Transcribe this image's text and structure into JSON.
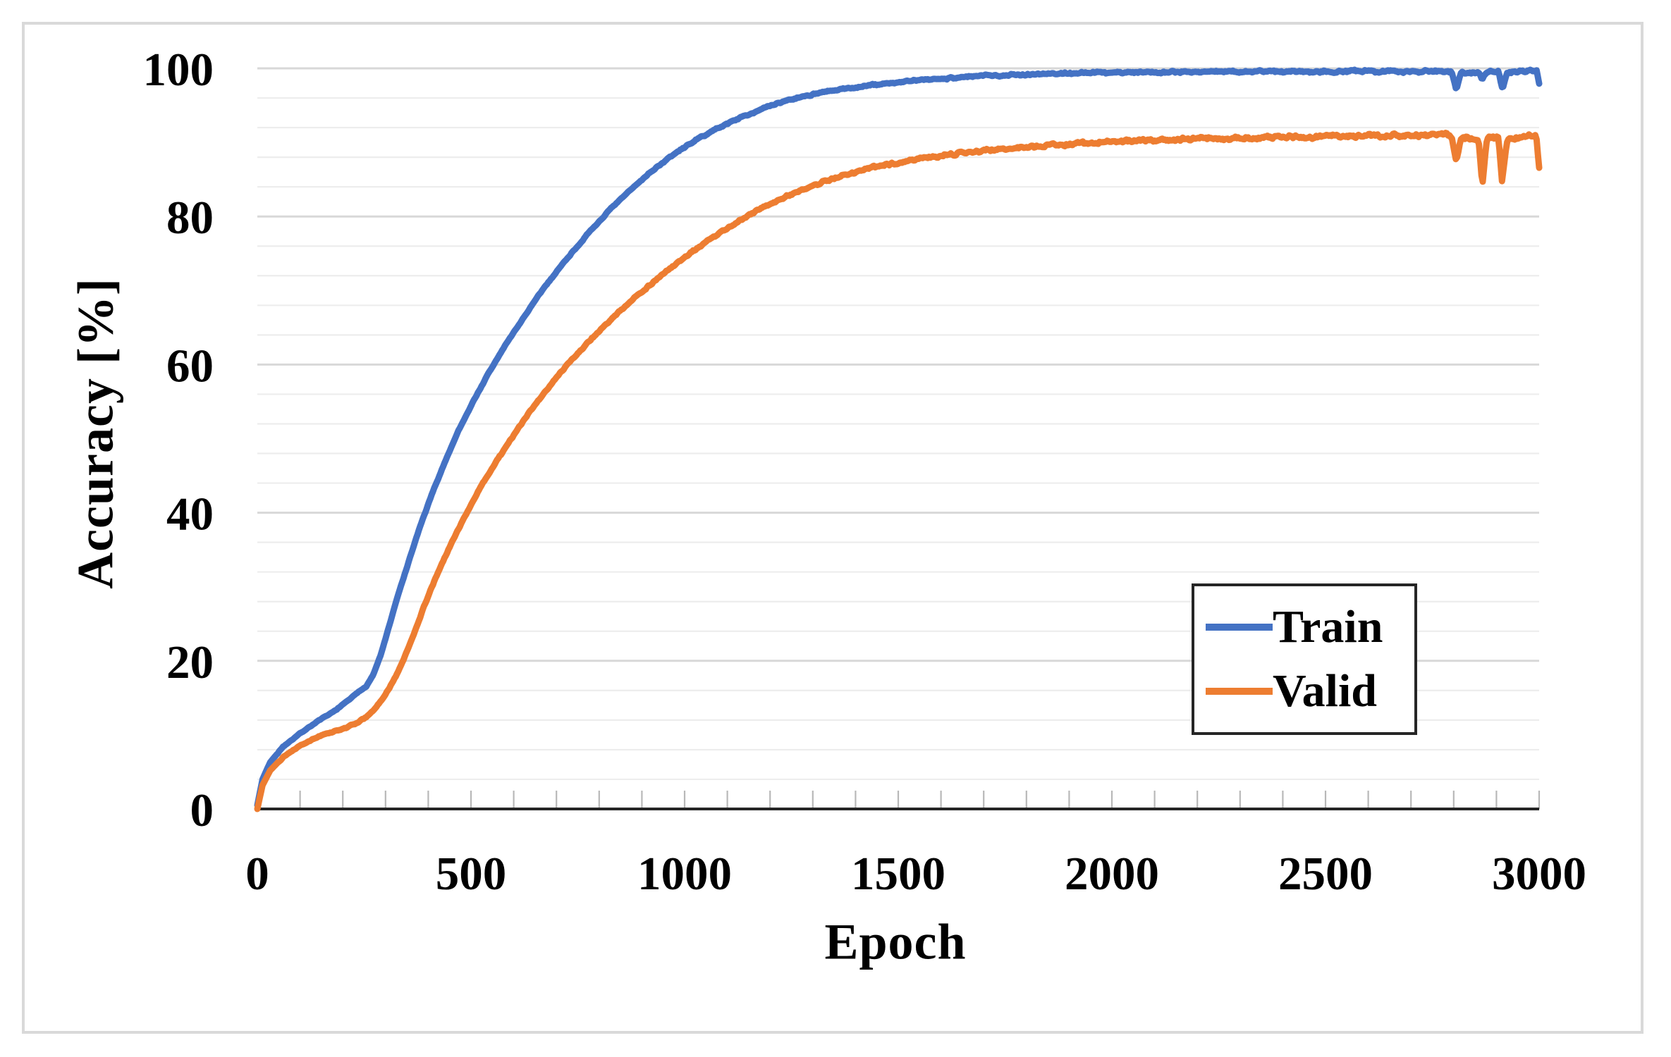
{
  "figure": {
    "background": "#ffffff",
    "border_color": "#d9d9d9",
    "plot_background": "#ffffff",
    "axis_line_color": "#262626",
    "tick_mark_color": "#b8b8b8",
    "grid_minor_color": "#ededed",
    "grid_major_color": "#d8d8d8"
  },
  "chart_data": {
    "type": "line",
    "title": "",
    "xlabel": "Epoch",
    "ylabel": "Accuracy [%]",
    "xlim": [
      0,
      3000
    ],
    "ylim": [
      0,
      100
    ],
    "x_major_ticks": [
      0,
      500,
      1000,
      1500,
      2000,
      2500,
      3000
    ],
    "x_minor_tick_step": 100,
    "y_major_ticks": [
      0,
      20,
      40,
      60,
      80,
      100
    ],
    "y_minor_step": 4,
    "grid": "horizontal minor+major, no vertical gridlines, x ticks inside axis",
    "legend": {
      "position": "middle-right",
      "border_color": "#262626",
      "entries": [
        "Train",
        "Valid"
      ]
    },
    "series": [
      {
        "name": "Train",
        "color": "#4472C4",
        "points": [
          [
            0,
            0.5
          ],
          [
            12,
            4
          ],
          [
            30,
            6.3
          ],
          [
            60,
            8.4
          ],
          [
            100,
            10.2
          ],
          [
            140,
            11.8
          ],
          [
            175,
            13
          ],
          [
            205,
            14.3
          ],
          [
            235,
            15.7
          ],
          [
            255,
            16.6
          ],
          [
            272,
            18.2
          ],
          [
            290,
            21
          ],
          [
            310,
            25
          ],
          [
            330,
            29
          ],
          [
            355,
            33.5
          ],
          [
            380,
            38
          ],
          [
            410,
            42.7
          ],
          [
            440,
            47
          ],
          [
            470,
            51
          ],
          [
            505,
            55
          ],
          [
            540,
            58.7
          ],
          [
            580,
            62.6
          ],
          [
            625,
            66.5
          ],
          [
            670,
            70.3
          ],
          [
            720,
            74
          ],
          [
            770,
            77.4
          ],
          [
            820,
            80.6
          ],
          [
            870,
            83.4
          ],
          [
            920,
            86
          ],
          [
            970,
            88.2
          ],
          [
            1020,
            90.1
          ],
          [
            1070,
            91.7
          ],
          [
            1120,
            93.1
          ],
          [
            1180,
            94.5
          ],
          [
            1240,
            95.7
          ],
          [
            1300,
            96.5
          ],
          [
            1360,
            97.1
          ],
          [
            1420,
            97.6
          ],
          [
            1480,
            98
          ],
          [
            1550,
            98.4
          ],
          [
            1620,
            98.7
          ],
          [
            1700,
            99
          ],
          [
            1800,
            99.2
          ],
          [
            1900,
            99.35
          ],
          [
            2000,
            99.45
          ],
          [
            2100,
            99.5
          ],
          [
            2200,
            99.55
          ],
          [
            2300,
            99.55
          ],
          [
            2400,
            99.6
          ],
          [
            2500,
            99.6
          ],
          [
            2600,
            99.6
          ],
          [
            2700,
            99.62
          ],
          [
            2760,
            99.62
          ],
          [
            2795,
            99.6
          ],
          [
            2806,
            97.2
          ],
          [
            2818,
            99.5
          ],
          [
            2860,
            99.45
          ],
          [
            2867,
            98.6
          ],
          [
            2875,
            99.5
          ],
          [
            2905,
            99.5
          ],
          [
            2914,
            97.1
          ],
          [
            2925,
            99.5
          ],
          [
            2955,
            99.6
          ],
          [
            2985,
            99.6
          ],
          [
            2994,
            99.6
          ],
          [
            3000,
            97.9
          ]
        ]
      },
      {
        "name": "Valid",
        "color": "#ED7D31",
        "points": [
          [
            0,
            0
          ],
          [
            12,
            3.2
          ],
          [
            30,
            5.2
          ],
          [
            60,
            7
          ],
          [
            100,
            8.6
          ],
          [
            140,
            9.7
          ],
          [
            175,
            10.4
          ],
          [
            205,
            10.9
          ],
          [
            235,
            11.7
          ],
          [
            255,
            12.4
          ],
          [
            272,
            13.3
          ],
          [
            290,
            14.6
          ],
          [
            310,
            16.4
          ],
          [
            330,
            18.6
          ],
          [
            352,
            21.5
          ],
          [
            375,
            25
          ],
          [
            400,
            28.8
          ],
          [
            425,
            32.2
          ],
          [
            455,
            36
          ],
          [
            490,
            40
          ],
          [
            525,
            43.7
          ],
          [
            560,
            47
          ],
          [
            600,
            50.5
          ],
          [
            640,
            53.8
          ],
          [
            685,
            57.2
          ],
          [
            730,
            60.3
          ],
          [
            780,
            63.4
          ],
          [
            830,
            66.2
          ],
          [
            880,
            68.9
          ],
          [
            930,
            71.3
          ],
          [
            980,
            73.6
          ],
          [
            1030,
            75.7
          ],
          [
            1080,
            77.7
          ],
          [
            1130,
            79.5
          ],
          [
            1180,
            81.1
          ],
          [
            1230,
            82.5
          ],
          [
            1280,
            83.7
          ],
          [
            1330,
            84.8
          ],
          [
            1380,
            85.7
          ],
          [
            1440,
            86.6
          ],
          [
            1500,
            87.3
          ],
          [
            1570,
            88
          ],
          [
            1640,
            88.5
          ],
          [
            1720,
            89
          ],
          [
            1800,
            89.4
          ],
          [
            1900,
            89.8
          ],
          [
            2000,
            90.1
          ],
          [
            2100,
            90.3
          ],
          [
            2200,
            90.5
          ],
          [
            2300,
            90.6
          ],
          [
            2400,
            90.75
          ],
          [
            2500,
            90.8
          ],
          [
            2600,
            90.9
          ],
          [
            2700,
            90.9
          ],
          [
            2760,
            91
          ],
          [
            2795,
            90.9
          ],
          [
            2806,
            87.3
          ],
          [
            2818,
            90.7
          ],
          [
            2858,
            90.6
          ],
          [
            2867,
            84.5
          ],
          [
            2878,
            90.6
          ],
          [
            2905,
            90.5
          ],
          [
            2913,
            84.7
          ],
          [
            2926,
            90.5
          ],
          [
            2955,
            90.7
          ],
          [
            2980,
            90.8
          ],
          [
            2993,
            90.8
          ],
          [
            3000,
            86.4
          ]
        ]
      }
    ]
  }
}
